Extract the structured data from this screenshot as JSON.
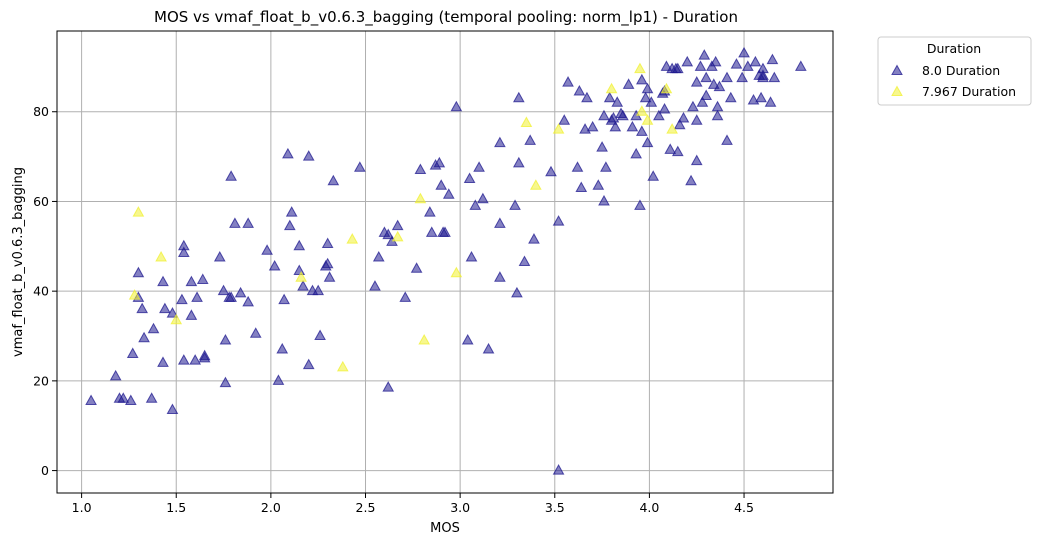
{
  "chart_data": {
    "type": "scatter",
    "title": "MOS vs vmaf_float_b_v0.6.3_bagging (temporal pooling: norm_lp1) - Duration",
    "xlabel": "MOS",
    "ylabel": "vmaf_float_b_v0.6.3_bagging",
    "xlim": [
      0.87,
      4.97
    ],
    "ylim": [
      -5,
      98
    ],
    "xticks": [
      "1.0",
      "1.5",
      "2.0",
      "2.5",
      "3.0",
      "3.5",
      "4.0",
      "4.5"
    ],
    "yticks": [
      "0",
      "20",
      "40",
      "60",
      "80"
    ],
    "grid": true,
    "marker": "triangle",
    "legend": {
      "title": "Duration",
      "placement": "outside-top-right"
    },
    "series": [
      {
        "name": "8.0 Duration",
        "color": "#1f1a8f",
        "points": [
          [
            1.05,
            15.5
          ],
          [
            1.18,
            21
          ],
          [
            1.2,
            16
          ],
          [
            1.22,
            16
          ],
          [
            1.26,
            15.5
          ],
          [
            1.27,
            26
          ],
          [
            1.3,
            44
          ],
          [
            1.3,
            38.5
          ],
          [
            1.32,
            36
          ],
          [
            1.33,
            29.5
          ],
          [
            1.37,
            16
          ],
          [
            1.38,
            31.5
          ],
          [
            1.43,
            42
          ],
          [
            1.43,
            24
          ],
          [
            1.44,
            36
          ],
          [
            1.48,
            13.5
          ],
          [
            1.48,
            35
          ],
          [
            1.53,
            38
          ],
          [
            1.54,
            50
          ],
          [
            1.54,
            48.5
          ],
          [
            1.54,
            24.5
          ],
          [
            1.58,
            42
          ],
          [
            1.58,
            34.5
          ],
          [
            1.6,
            24.5
          ],
          [
            1.61,
            38.5
          ],
          [
            1.64,
            42.5
          ],
          [
            1.65,
            25
          ],
          [
            1.65,
            25.5
          ],
          [
            1.73,
            47.5
          ],
          [
            1.75,
            40
          ],
          [
            1.76,
            19.5
          ],
          [
            1.76,
            29
          ],
          [
            1.78,
            38.5
          ],
          [
            1.79,
            38.5
          ],
          [
            1.79,
            65.5
          ],
          [
            1.81,
            55
          ],
          [
            1.84,
            39.5
          ],
          [
            1.88,
            55
          ],
          [
            1.88,
            37.5
          ],
          [
            1.92,
            30.5
          ],
          [
            1.98,
            49
          ],
          [
            2.02,
            45.5
          ],
          [
            2.04,
            20
          ],
          [
            2.06,
            27
          ],
          [
            2.07,
            38
          ],
          [
            2.09,
            70.5
          ],
          [
            2.1,
            54.5
          ],
          [
            2.11,
            57.5
          ],
          [
            2.15,
            50
          ],
          [
            2.15,
            44.5
          ],
          [
            2.17,
            41
          ],
          [
            2.2,
            70
          ],
          [
            2.2,
            23.5
          ],
          [
            2.22,
            40
          ],
          [
            2.25,
            40
          ],
          [
            2.26,
            30
          ],
          [
            2.29,
            45.5
          ],
          [
            2.3,
            46
          ],
          [
            2.3,
            50.5
          ],
          [
            2.31,
            43
          ],
          [
            2.33,
            64.5
          ],
          [
            2.47,
            67.5
          ],
          [
            2.55,
            41
          ],
          [
            2.57,
            47.5
          ],
          [
            2.6,
            53
          ],
          [
            2.62,
            52.5
          ],
          [
            2.62,
            18.5
          ],
          [
            2.64,
            51
          ],
          [
            2.67,
            54.5
          ],
          [
            2.71,
            38.5
          ],
          [
            2.77,
            45
          ],
          [
            2.79,
            67
          ],
          [
            2.84,
            57.5
          ],
          [
            2.85,
            53
          ],
          [
            2.87,
            68
          ],
          [
            2.89,
            68.5
          ],
          [
            2.9,
            63.5
          ],
          [
            2.91,
            53
          ],
          [
            2.92,
            53
          ],
          [
            2.94,
            61.5
          ],
          [
            2.98,
            81
          ],
          [
            3.04,
            29
          ],
          [
            3.05,
            65
          ],
          [
            3.06,
            47.5
          ],
          [
            3.08,
            59
          ],
          [
            3.1,
            67.5
          ],
          [
            3.12,
            60.5
          ],
          [
            3.15,
            27
          ],
          [
            3.21,
            73
          ],
          [
            3.21,
            55
          ],
          [
            3.21,
            43
          ],
          [
            3.29,
            59
          ],
          [
            3.3,
            39.5
          ],
          [
            3.31,
            83
          ],
          [
            3.31,
            68.5
          ],
          [
            3.34,
            46.5
          ],
          [
            3.37,
            73.5
          ],
          [
            3.39,
            51.5
          ],
          [
            3.48,
            66.5
          ],
          [
            3.52,
            55.5
          ],
          [
            3.52,
            0
          ],
          [
            3.55,
            78
          ],
          [
            3.57,
            86.5
          ],
          [
            3.62,
            67.5
          ],
          [
            3.63,
            84.5
          ],
          [
            3.64,
            63
          ],
          [
            3.66,
            76
          ],
          [
            3.67,
            83
          ],
          [
            3.7,
            76.5
          ],
          [
            3.73,
            63.5
          ],
          [
            3.75,
            72
          ],
          [
            3.76,
            60
          ],
          [
            3.76,
            79
          ],
          [
            3.77,
            67.5
          ],
          [
            3.79,
            83
          ],
          [
            3.8,
            78
          ],
          [
            3.81,
            78.5
          ],
          [
            3.82,
            76.5
          ],
          [
            3.83,
            82
          ],
          [
            3.85,
            79.5
          ],
          [
            3.86,
            79
          ],
          [
            3.89,
            86
          ],
          [
            3.91,
            76.5
          ],
          [
            3.93,
            70.5
          ],
          [
            3.93,
            79
          ],
          [
            3.95,
            59
          ],
          [
            3.96,
            87
          ],
          [
            3.96,
            75.5
          ],
          [
            3.98,
            83
          ],
          [
            3.99,
            73
          ],
          [
            3.99,
            85
          ],
          [
            4.01,
            82
          ],
          [
            4.02,
            65.5
          ],
          [
            4.05,
            79
          ],
          [
            4.07,
            84
          ],
          [
            4.08,
            84.5
          ],
          [
            4.08,
            80.5
          ],
          [
            4.09,
            90
          ],
          [
            4.11,
            71.5
          ],
          [
            4.12,
            89.5
          ],
          [
            4.14,
            89.5
          ],
          [
            4.15,
            71
          ],
          [
            4.15,
            89.5
          ],
          [
            4.16,
            77
          ],
          [
            4.18,
            78.5
          ],
          [
            4.2,
            91
          ],
          [
            4.22,
            64.5
          ],
          [
            4.23,
            81
          ],
          [
            4.25,
            69
          ],
          [
            4.25,
            86.5
          ],
          [
            4.25,
            78
          ],
          [
            4.27,
            90
          ],
          [
            4.28,
            82
          ],
          [
            4.29,
            92.5
          ],
          [
            4.3,
            87.5
          ],
          [
            4.3,
            83.5
          ],
          [
            4.33,
            90
          ],
          [
            4.34,
            86
          ],
          [
            4.35,
            91
          ],
          [
            4.36,
            81
          ],
          [
            4.36,
            79
          ],
          [
            4.37,
            85.5
          ],
          [
            4.41,
            73.5
          ],
          [
            4.41,
            87.5
          ],
          [
            4.43,
            83
          ],
          [
            4.46,
            90.5
          ],
          [
            4.49,
            87.5
          ],
          [
            4.5,
            93
          ],
          [
            4.52,
            90
          ],
          [
            4.55,
            82.5
          ],
          [
            4.56,
            91
          ],
          [
            4.58,
            88
          ],
          [
            4.59,
            83
          ],
          [
            4.6,
            89.5
          ],
          [
            4.6,
            88
          ],
          [
            4.6,
            87.5
          ],
          [
            4.64,
            82
          ],
          [
            4.65,
            91.5
          ],
          [
            4.66,
            87.5
          ],
          [
            4.8,
            90
          ]
        ]
      },
      {
        "name": "7.967 Duration",
        "color": "#f0f032",
        "points": [
          [
            1.28,
            39
          ],
          [
            1.3,
            57.5
          ],
          [
            1.42,
            47.5
          ],
          [
            1.5,
            33.5
          ],
          [
            2.16,
            43
          ],
          [
            2.38,
            23
          ],
          [
            2.43,
            51.5
          ],
          [
            2.67,
            52
          ],
          [
            2.79,
            60.5
          ],
          [
            2.81,
            29
          ],
          [
            2.98,
            44
          ],
          [
            3.35,
            77.5
          ],
          [
            3.4,
            63.5
          ],
          [
            3.52,
            76
          ],
          [
            3.8,
            85
          ],
          [
            3.95,
            89.5
          ],
          [
            3.96,
            80
          ],
          [
            3.99,
            78
          ],
          [
            4.09,
            85
          ],
          [
            4.12,
            76
          ]
        ]
      }
    ]
  }
}
